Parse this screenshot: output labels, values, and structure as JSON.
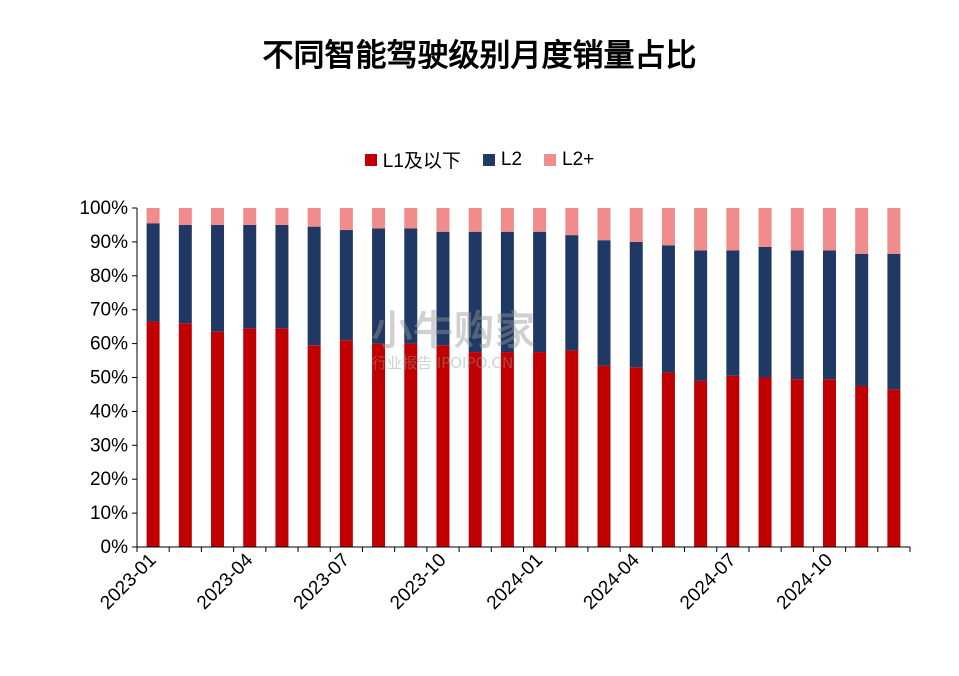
{
  "chart_data": {
    "type": "bar",
    "stacked": true,
    "title": "不同智能驾驶级别月度销量占比",
    "categories": [
      "2023-01",
      "2023-02",
      "2023-03",
      "2023-04",
      "2023-05",
      "2023-06",
      "2023-07",
      "2023-08",
      "2023-09",
      "2023-10",
      "2023-11",
      "2023-12",
      "2024-01",
      "2024-02",
      "2024-03",
      "2024-04",
      "2024-05",
      "2024-06",
      "2024-07",
      "2024-08",
      "2024-09",
      "2024-10",
      "2024-11",
      "2024-12"
    ],
    "x_tick_labels": [
      "2023-01",
      "2023-04",
      "2023-07",
      "2023-10",
      "2024-01",
      "2024-04",
      "2024-07",
      "2024-10"
    ],
    "y_tick_labels": [
      "0%",
      "10%",
      "20%",
      "30%",
      "40%",
      "50%",
      "60%",
      "70%",
      "80%",
      "90%",
      "100%"
    ],
    "ylim": [
      0,
      100
    ],
    "legend_position": "top-center",
    "series": [
      {
        "name": "L1及以下",
        "color": "#c00000",
        "values": [
          66.5,
          66.0,
          63.5,
          64.5,
          64.5,
          59.5,
          61.0,
          60.0,
          60.0,
          59.5,
          57.5,
          57.5,
          57.5,
          58.0,
          53.5,
          53.0,
          51.5,
          49.0,
          50.5,
          50.0,
          49.5,
          49.5,
          47.5,
          46.5
        ]
      },
      {
        "name": "L2",
        "color": "#203864",
        "values": [
          29.0,
          29.0,
          31.5,
          30.5,
          30.5,
          35.0,
          32.5,
          34.0,
          34.0,
          33.5,
          35.5,
          35.5,
          35.5,
          34.0,
          37.0,
          37.0,
          37.5,
          38.5,
          37.0,
          38.5,
          38.0,
          38.0,
          39.0,
          40.0
        ]
      },
      {
        "name": "L2+",
        "color": "#f08c8c",
        "values": [
          4.5,
          5.0,
          5.0,
          5.0,
          5.0,
          5.5,
          6.5,
          6.0,
          6.0,
          7.0,
          7.0,
          7.0,
          7.0,
          8.0,
          9.5,
          10.0,
          11.0,
          12.5,
          12.5,
          11.5,
          12.5,
          12.5,
          13.5,
          13.5
        ]
      }
    ]
  },
  "watermark": {
    "main": "小牛购家",
    "sub": "行业报告 IPOIPO.CN"
  }
}
